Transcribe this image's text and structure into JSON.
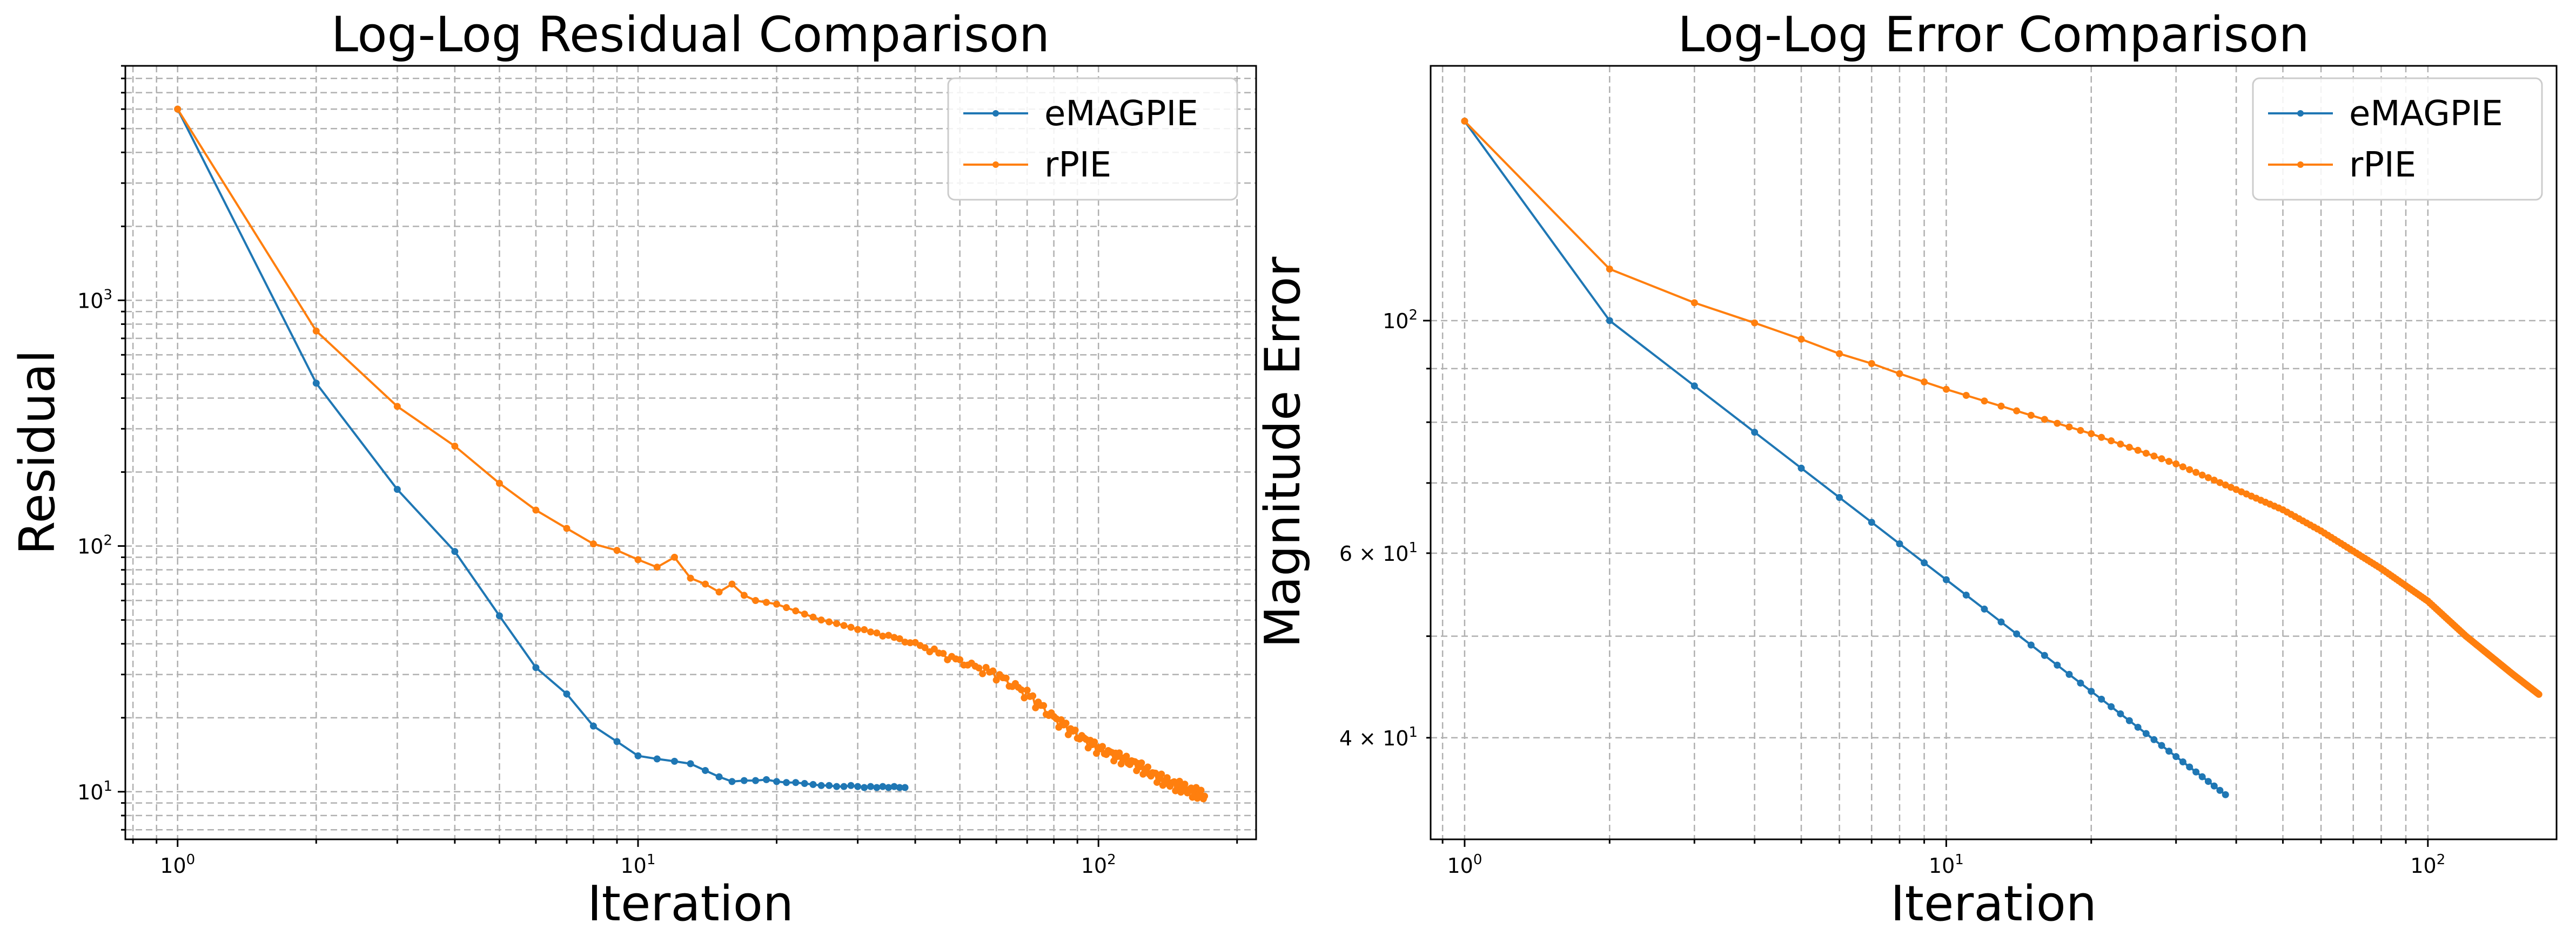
{
  "colors": {
    "emagpie": "#1f77b4",
    "rpie": "#ff7f0e",
    "grid": "#b0b0b0"
  },
  "chart_data": [
    {
      "type": "line",
      "title": "Log-Log Residual Comparison",
      "xlabel": "Iteration",
      "ylabel": "Residual",
      "xscale": "log",
      "yscale": "log",
      "grid": "both (major and minor), dashed",
      "legend_placement": "top-right",
      "x_ticks": [
        {
          "value": 1,
          "mantissa": "",
          "base": "10",
          "exp": "0"
        },
        {
          "value": 10,
          "mantissa": "",
          "base": "10",
          "exp": "1"
        },
        {
          "value": 100,
          "mantissa": "",
          "base": "10",
          "exp": "2"
        }
      ],
      "y_ticks": [
        {
          "value": 10,
          "mantissa": "",
          "base": "10",
          "exp": "1"
        },
        {
          "value": 100,
          "mantissa": "",
          "base": "10",
          "exp": "2"
        },
        {
          "value": 1000,
          "mantissa": "",
          "base": "10",
          "exp": "3"
        }
      ],
      "xlim": [
        0.77,
        220
      ],
      "ylim": [
        6.4,
        9000
      ],
      "series": [
        {
          "name": "eMAGPIE",
          "color": "#1f77b4",
          "x": [
            1,
            2,
            3,
            4,
            5,
            6,
            7,
            8,
            9,
            10,
            11,
            12,
            13,
            14,
            15,
            16,
            17,
            18,
            19,
            20,
            21,
            22,
            23,
            24,
            25,
            26,
            27,
            28,
            29,
            30,
            31,
            32,
            33,
            34,
            35,
            36,
            37,
            38
          ],
          "y": [
            6000,
            460,
            170,
            95,
            52,
            32,
            25,
            18.5,
            16,
            14,
            13.6,
            13.3,
            13,
            12.2,
            11.5,
            11.0,
            11.1,
            11.1,
            11.2,
            11.0,
            10.9,
            10.9,
            10.8,
            10.7,
            10.6,
            10.6,
            10.5,
            10.5,
            10.6,
            10.5,
            10.4,
            10.5,
            10.4,
            10.5,
            10.4,
            10.5,
            10.4,
            10.4
          ]
        },
        {
          "name": "rPIE",
          "color": "#ff7f0e",
          "x_range": [
            1,
            170
          ],
          "y_key": {
            "1": 6000,
            "2": 750,
            "3": 370,
            "4": 255,
            "5": 180,
            "6": 140,
            "7": 118,
            "8": 102,
            "9": 96,
            "10": 88,
            "11": 82,
            "12": 90,
            "13": 74,
            "14": 70,
            "15": 65,
            "16": 70,
            "17": 63,
            "18": 60,
            "20": 58,
            "25": 50,
            "30": 46,
            "35": 43,
            "40": 40,
            "50": 34,
            "60": 30,
            "70": 25,
            "80": 20,
            "90": 17,
            "100": 15,
            "120": 13,
            "140": 11,
            "150": 10.5,
            "160": 10,
            "170": 9.6
          }
        }
      ]
    },
    {
      "type": "line",
      "title": "Log-Log Error Comparison",
      "xlabel": "Iteration",
      "ylabel": "Magnitude Error",
      "xscale": "log",
      "yscale": "log",
      "grid": "both (major and minor), dashed",
      "legend_placement": "top-right",
      "x_ticks": [
        {
          "value": 1,
          "mantissa": "",
          "base": "10",
          "exp": "0"
        },
        {
          "value": 10,
          "mantissa": "",
          "base": "10",
          "exp": "1"
        },
        {
          "value": 100,
          "mantissa": "",
          "base": "10",
          "exp": "2"
        }
      ],
      "y_ticks": [
        {
          "value": 40,
          "mantissa": "4 × ",
          "base": "10",
          "exp": "1"
        },
        {
          "value": 60,
          "mantissa": "6 × ",
          "base": "10",
          "exp": "1"
        },
        {
          "value": 100,
          "mantissa": "",
          "base": "10",
          "exp": "2"
        }
      ],
      "xlim": [
        0.85,
        185
      ],
      "ylim": [
        32,
        175
      ],
      "series": [
        {
          "name": "eMAGPIE",
          "color": "#1f77b4",
          "x_range": [
            1,
            38
          ],
          "y_start": 155,
          "y_at2": 100,
          "y_end": 35.3
        },
        {
          "name": "rPIE",
          "color": "#ff7f0e",
          "x_range": [
            1,
            170
          ],
          "y_key": {
            "1": 155,
            "2": 112,
            "3": 104,
            "4": 99.5,
            "5": 96,
            "6": 93,
            "7": 91,
            "8": 89,
            "10": 86,
            "20": 78,
            "30": 73,
            "40": 69,
            "50": 66,
            "60": 63,
            "80": 58,
            "100": 54,
            "120": 50,
            "150": 46,
            "170": 44
          }
        }
      ]
    }
  ]
}
